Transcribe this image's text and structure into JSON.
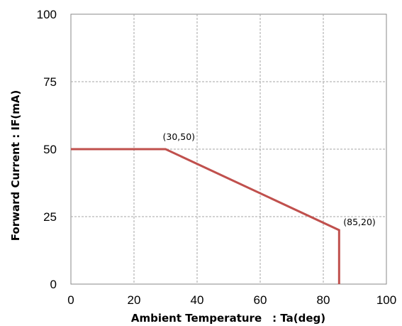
{
  "chart_data": {
    "type": "line",
    "title": "",
    "xlabel": "Ambient Temperature　: Ta(deg)",
    "ylabel": "Forward Current : IF(mA)",
    "xlim": [
      0,
      100
    ],
    "ylim": [
      0,
      100
    ],
    "x_ticks": [
      0,
      20,
      40,
      60,
      80,
      100
    ],
    "y_ticks": [
      0,
      25,
      50,
      75,
      100
    ],
    "grid": true,
    "legend": "none",
    "line_color": "#c0504d",
    "series": [
      {
        "points": [
          [
            0,
            50
          ],
          [
            30,
            50
          ],
          [
            85,
            20
          ],
          [
            85,
            0
          ]
        ]
      }
    ],
    "annotations": [
      {
        "text": "(30,50)",
        "x": 30,
        "y": 50
      },
      {
        "text": "(85,20)",
        "x": 85,
        "y": 20
      }
    ]
  }
}
